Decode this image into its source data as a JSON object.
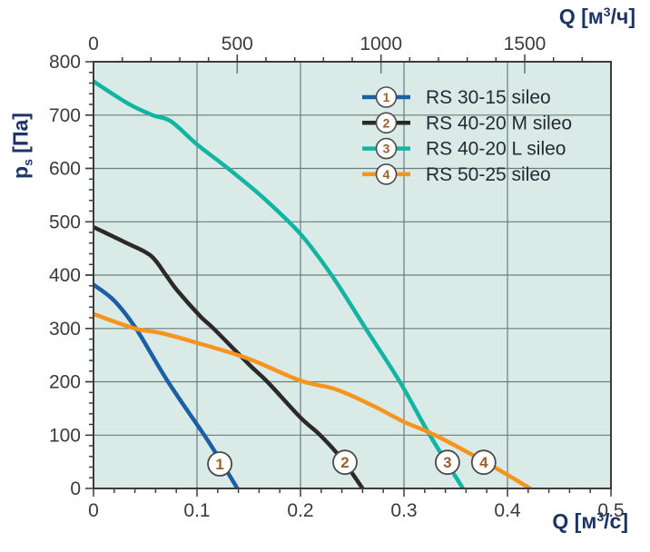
{
  "chart_data": {
    "type": "line",
    "title": "",
    "grid": true,
    "legend_position": "top-right-inside",
    "colors": {
      "plot_background": "#daeae7",
      "grid": "#6d7d7a",
      "axis": "#3c3c3c",
      "tick_label": "#3b3b3b",
      "axis_title": "#1c3566",
      "legend_text": "#242b33",
      "marker_circle_stroke": "#4a4a4a",
      "marker_number": "#9a6228"
    },
    "x_bottom": {
      "label": "Q [м³/с]",
      "label_parts": {
        "pre": "Q [м",
        "sup": "3",
        "post": "/с]"
      },
      "min": 0,
      "max": 0.5,
      "major_ticks": [
        0,
        0.1,
        0.2,
        0.3,
        0.4,
        0.5
      ],
      "tick_labels": [
        "0",
        "0.1",
        "0.2",
        "0.3",
        "0.4",
        "0.5"
      ],
      "minor_step": 0.02
    },
    "x_top": {
      "label": "Q [м³/ч]",
      "label_parts": {
        "pre": "Q [м",
        "sup": "3",
        "post": "/ч]"
      },
      "min": 0,
      "max": 1800,
      "major_ticks": [
        0,
        500,
        1000,
        1500
      ],
      "tick_labels": [
        "0",
        "500",
        "1000",
        "1500"
      ],
      "minor_step": 100
    },
    "y": {
      "label": "pₛ [Па]",
      "label_parts": {
        "main": "p",
        "sub": "s",
        "post": " [Па]"
      },
      "min": 0,
      "max": 800,
      "major_ticks": [
        0,
        100,
        200,
        300,
        400,
        500,
        600,
        700,
        800
      ],
      "tick_labels": [
        "0",
        "100",
        "200",
        "300",
        "400",
        "500",
        "600",
        "700",
        "800"
      ],
      "minor_step": 20
    },
    "series": [
      {
        "marker_label": "1",
        "name": "RS 30-15 sileo",
        "color": "#1b5fa5",
        "points": [
          [
            0,
            382
          ],
          [
            0.02,
            352
          ],
          [
            0.041,
            300
          ],
          [
            0.072,
            200
          ],
          [
            0.107,
            100
          ],
          [
            0.125,
            45
          ],
          [
            0.139,
            0
          ]
        ],
        "marker_at": [
          0.122,
          46
        ]
      },
      {
        "marker_label": "2",
        "name": "RS 40-20 M sileo",
        "color": "#2b2a29",
        "points": [
          [
            0,
            490
          ],
          [
            0.03,
            462
          ],
          [
            0.055,
            437
          ],
          [
            0.07,
            400
          ],
          [
            0.081,
            371
          ],
          [
            0.103,
            323
          ],
          [
            0.116,
            300
          ],
          [
            0.15,
            233
          ],
          [
            0.168,
            200
          ],
          [
            0.2,
            133
          ],
          [
            0.219,
            100
          ],
          [
            0.24,
            55
          ],
          [
            0.26,
            0
          ]
        ],
        "marker_at": [
          0.243,
          49
        ]
      },
      {
        "marker_label": "3",
        "name": "RS 40-20 L sileo",
        "color": "#12b5a2",
        "points": [
          [
            0,
            763
          ],
          [
            0.033,
            722
          ],
          [
            0.057,
            700
          ],
          [
            0.075,
            688
          ],
          [
            0.1,
            645
          ],
          [
            0.13,
            600
          ],
          [
            0.164,
            545
          ],
          [
            0.2,
            477
          ],
          [
            0.23,
            400
          ],
          [
            0.263,
            300
          ],
          [
            0.296,
            200
          ],
          [
            0.325,
            100
          ],
          [
            0.357,
            0
          ]
        ],
        "marker_at": [
          0.342,
          49
        ]
      },
      {
        "marker_label": "4",
        "name": "RS 50-25 sileo",
        "color": "#f7941e",
        "points": [
          [
            0,
            327
          ],
          [
            0.04,
            300
          ],
          [
            0.066,
            291
          ],
          [
            0.1,
            273
          ],
          [
            0.15,
            243
          ],
          [
            0.2,
            202
          ],
          [
            0.234,
            186
          ],
          [
            0.27,
            155
          ],
          [
            0.3,
            125
          ],
          [
            0.33,
            100
          ],
          [
            0.38,
            48
          ],
          [
            0.422,
            0
          ]
        ],
        "marker_at": [
          0.377,
          49
        ]
      }
    ]
  }
}
